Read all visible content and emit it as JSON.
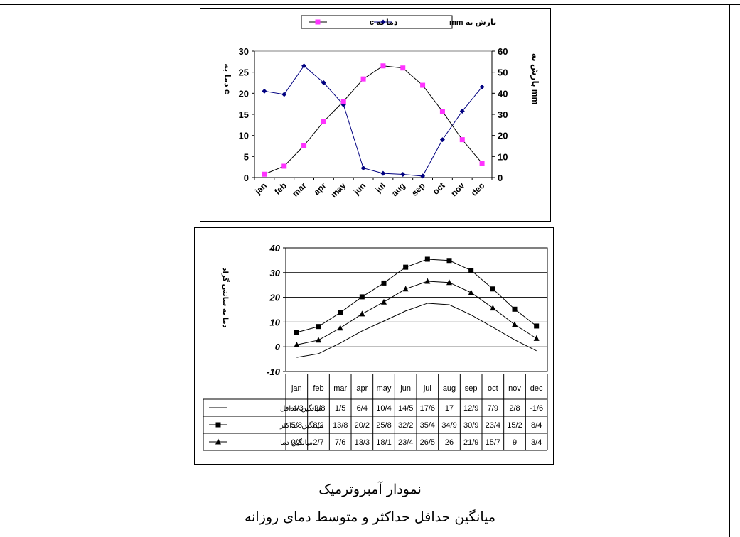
{
  "captions": {
    "title": "نمودار آمبروترمیک",
    "subtitle": "میانگین حداقل حداکثر و متوسط دمای روزانه"
  },
  "chart_data": [
    {
      "type": "line",
      "categories": [
        "jan",
        "feb",
        "mar",
        "apr",
        "may",
        "jun",
        "jul",
        "aug",
        "sep",
        "oct",
        "nov",
        "dec"
      ],
      "series": [
        {
          "name": "بارش به mm",
          "axis": "right",
          "color": "#000080",
          "marker": "diamond",
          "values": [
            41,
            39.5,
            53,
            45,
            34.5,
            4.5,
            2,
            1.5,
            0.7,
            18,
            31.5,
            43
          ]
        },
        {
          "name": "دما به c",
          "axis": "left",
          "color": "#000000",
          "marker_color": "#ff33ff",
          "marker": "square",
          "values": [
            0.8,
            2.7,
            7.6,
            13.3,
            18.1,
            23.4,
            26.5,
            26,
            21.9,
            15.7,
            9,
            3.4
          ]
        }
      ],
      "y_left": {
        "label": "دما به c",
        "lim": [
          0,
          30
        ],
        "ticks": [
          0,
          5,
          10,
          15,
          20,
          25,
          30
        ]
      },
      "y_right": {
        "label": "بارش به mm",
        "lim": [
          0,
          60
        ],
        "ticks": [
          0,
          10,
          20,
          30,
          40,
          50,
          60
        ]
      },
      "legend_position": "top",
      "grid": false
    },
    {
      "type": "line",
      "categories": [
        "jan",
        "feb",
        "mar",
        "apr",
        "may",
        "jun",
        "jul",
        "aug",
        "sep",
        "oct",
        "nov",
        "dec"
      ],
      "ylabel": "دما به سانتی گراد",
      "ylim": [
        -10,
        40
      ],
      "yticks": [
        -10,
        0,
        10,
        20,
        30,
        40
      ],
      "grid": true,
      "series": [
        {
          "name": "میانگین حداقل",
          "marker": "none",
          "values": [
            -4.3,
            -2.8,
            1.5,
            6.4,
            10.4,
            14.5,
            17.6,
            17,
            12.9,
            7.9,
            2.8,
            -1.6
          ],
          "labels": [
            "-4/3",
            "-2/8",
            "1/5",
            "6/4",
            "10/4",
            "14/5",
            "17/6",
            "17",
            "12/9",
            "7/9",
            "2/8",
            "-1/6"
          ]
        },
        {
          "name": "میانگین حداکثر",
          "marker": "square",
          "values": [
            5.8,
            8.2,
            13.8,
            20.2,
            25.8,
            32.2,
            35.4,
            34.9,
            30.9,
            23.4,
            15.2,
            8.4
          ],
          "labels": [
            "5/8",
            "8/2",
            "13/8",
            "20/2",
            "25/8",
            "32/2",
            "35/4",
            "34/9",
            "30/9",
            "23/4",
            "15/2",
            "8/4"
          ]
        },
        {
          "name": "میانگین دما",
          "marker": "triangle",
          "values": [
            0.8,
            2.7,
            7.6,
            13.3,
            18.1,
            23.4,
            26.5,
            26,
            21.9,
            15.7,
            9,
            3.4
          ],
          "labels": [
            "0/8",
            "2/7",
            "7/6",
            "13/3",
            "18/1",
            "23/4",
            "26/5",
            "26",
            "21/9",
            "15/7",
            "9",
            "3/4"
          ]
        }
      ]
    }
  ]
}
